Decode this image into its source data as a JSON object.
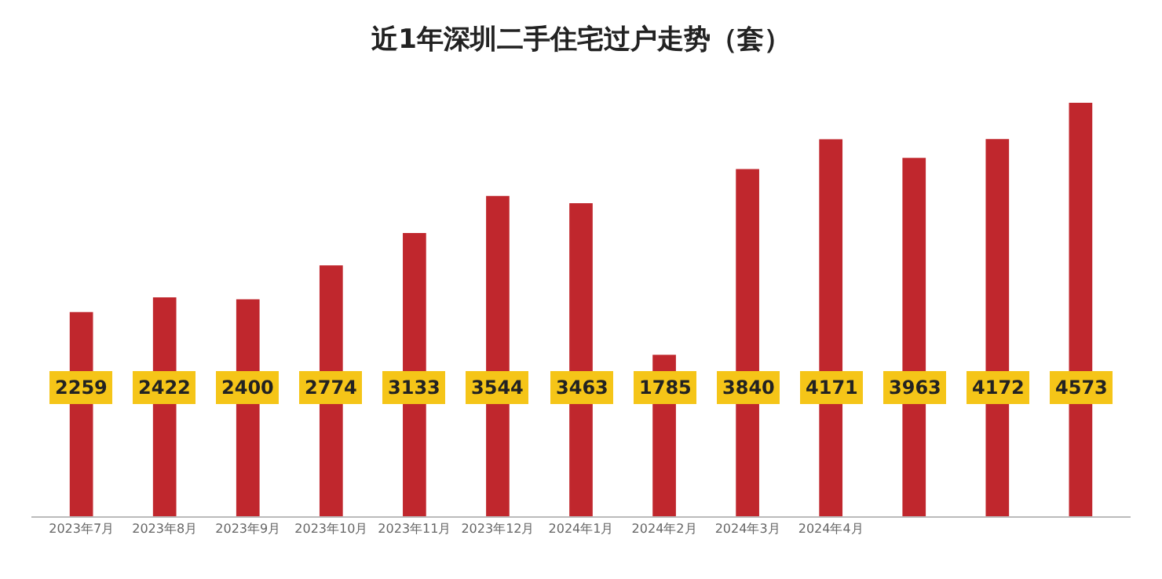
{
  "chart_data": {
    "type": "bar",
    "title": "近1年深圳二手住宅过户走势（套）",
    "categories": [
      "2023年7月",
      "2023年8月",
      "2023年9月",
      "2023年10月",
      "2023年11月",
      "2023年12月",
      "2024年1月",
      "2024年2月",
      "2024年3月",
      "2024年4月",
      null,
      null,
      null
    ],
    "values": [
      2259,
      2422,
      2400,
      2774,
      3133,
      3544,
      3463,
      1785,
      3840,
      4171,
      3963,
      4172,
      4573
    ],
    "color": "#c0272d",
    "data_labels": true
  }
}
